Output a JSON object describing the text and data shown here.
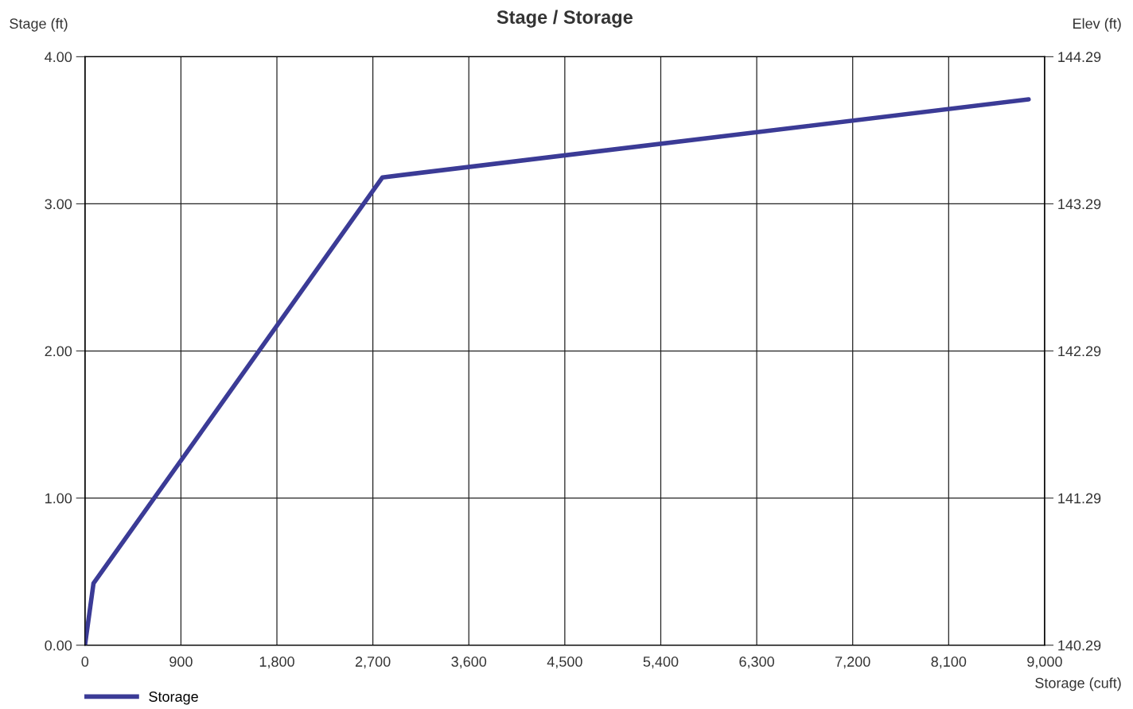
{
  "chart_data": {
    "type": "line",
    "title": "Stage / Storage",
    "xlabel": "Storage (cuft)",
    "ylabel": "Stage (ft)",
    "y2label": "Elev (ft)",
    "series": [
      {
        "name": "Storage",
        "color": "#3b3b96",
        "x": [
          0,
          80,
          2790,
          8850
        ],
        "values": [
          0,
          0.42,
          3.18,
          3.71
        ]
      }
    ],
    "xlim": [
      0,
      9000
    ],
    "xticks": [
      0,
      900,
      {
        "value": 1800,
        "label": "1,800"
      },
      {
        "value": 2700,
        "label": "2,700"
      },
      {
        "value": 3600,
        "label": "3,600"
      },
      {
        "value": 4500,
        "label": "4,500"
      },
      {
        "value": 5400,
        "label": "5,400"
      },
      {
        "value": 6300,
        "label": "6,300"
      },
      {
        "value": 7200,
        "label": "7,200"
      },
      {
        "value": 8100,
        "label": "8,100"
      },
      {
        "value": 9000,
        "label": "9,000"
      }
    ],
    "ylim": [
      0,
      4
    ],
    "yticks": [
      {
        "value": 0,
        "label": "0.00"
      },
      {
        "value": 1,
        "label": "1.00"
      },
      {
        "value": 2,
        "label": "2.00"
      },
      {
        "value": 3,
        "label": "3.00"
      },
      {
        "value": 4,
        "label": "4.00"
      }
    ],
    "y2lim": [
      140.29,
      144.29
    ],
    "y2ticks": [
      140.29,
      141.29,
      142.29,
      143.29,
      144.29
    ],
    "grid": true,
    "legend": "bottom left",
    "marker": "none",
    "line_style": "solid"
  }
}
